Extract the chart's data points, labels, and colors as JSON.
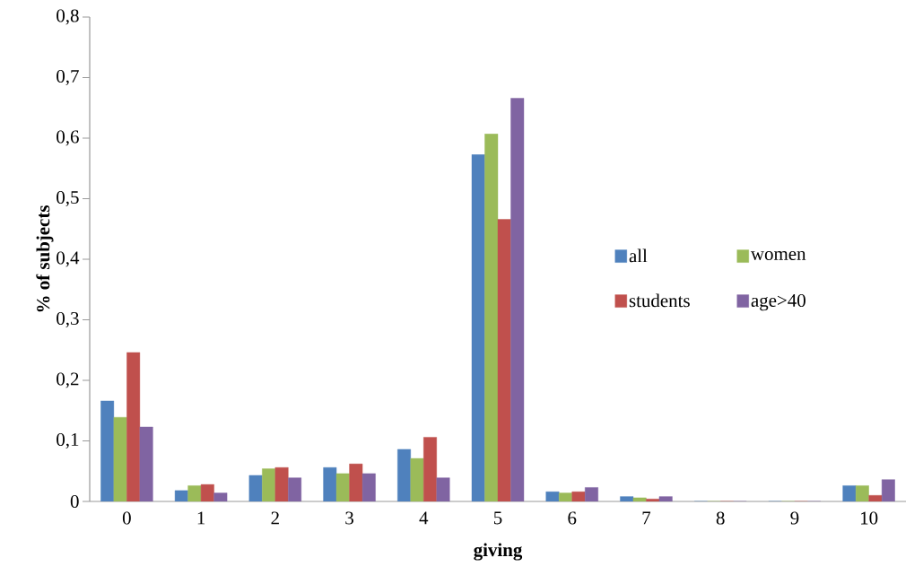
{
  "chart_data": {
    "type": "bar",
    "xlabel": "giving",
    "ylabel": "% of subjects",
    "categories": [
      "0",
      "1",
      "2",
      "3",
      "4",
      "5",
      "6",
      "7",
      "8",
      "9",
      "10"
    ],
    "series": [
      {
        "name": "all",
        "color": "#4f81bd",
        "values": [
          0.166,
          0.018,
          0.043,
          0.056,
          0.086,
          0.573,
          0.016,
          0.008,
          0,
          0,
          0.026
        ]
      },
      {
        "name": "women",
        "color": "#9bbb59",
        "values": [
          0.139,
          0.026,
          0.054,
          0.046,
          0.071,
          0.607,
          0.014,
          0.006,
          0,
          0,
          0.026
        ]
      },
      {
        "name": "students",
        "color": "#c0504d",
        "values": [
          0.246,
          0.028,
          0.056,
          0.062,
          0.106,
          0.466,
          0.016,
          0.004,
          0,
          0,
          0.01
        ]
      },
      {
        "name": "age>40",
        "color": "#8064a2",
        "values": [
          0.123,
          0.014,
          0.039,
          0.046,
          0.039,
          0.666,
          0.023,
          0.008,
          0,
          0,
          0.036
        ]
      }
    ],
    "ylim": [
      0,
      0.8
    ],
    "yticks": [
      0,
      {
        "value": 0.1,
        "label": "0,1"
      },
      {
        "value": 0.2,
        "label": "0,2"
      },
      {
        "value": 0.3,
        "label": "0,3"
      },
      {
        "value": 0.4,
        "label": "0,4"
      },
      {
        "value": 0.5,
        "label": "0,5"
      },
      {
        "value": 0.6,
        "label": "0,6"
      },
      {
        "value": 0.7,
        "label": "0,7"
      },
      {
        "value": 0.8,
        "label": "0,8"
      }
    ],
    "grid": false,
    "legend": "right"
  }
}
